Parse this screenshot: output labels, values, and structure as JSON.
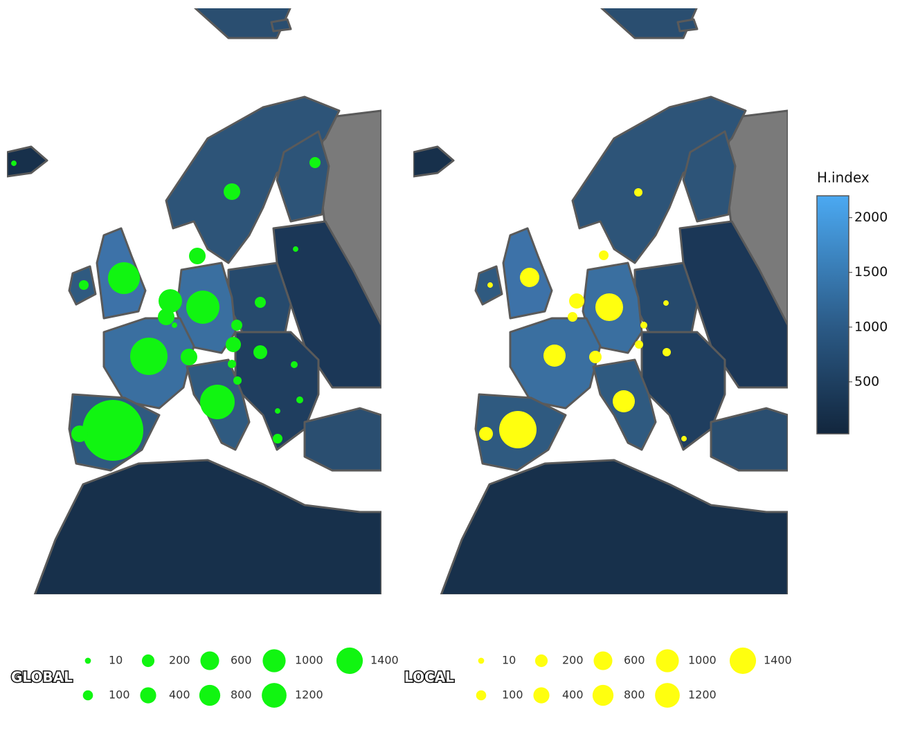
{
  "panels": [
    {
      "title": "GLOBAL",
      "color": "#11f511",
      "bubbles": [
        5,
        135,
        438,
        438,
        5,
        87,
        2163,
        1060,
        438,
        5,
        2385,
        135,
        135,
        3115,
        438,
        346,
        265,
        49,
        49,
        22,
        2618,
        22,
        5,
        87,
        9092,
        438
      ]
    },
    {
      "title": "LOCAL",
      "color": "#ffff0f",
      "bubbles": [
        654,
        5,
        49,
        87,
        346,
        87,
        1563,
        5,
        22,
        49,
        49,
        914,
        195,
        914,
        3115,
        265,
        5
      ]
    }
  ],
  "legend": {
    "sizes": [
      10,
      100,
      200,
      400,
      600,
      800,
      1000,
      1200,
      1400
    ]
  },
  "colorbar": {
    "title": "H.index",
    "range": [
      25,
      2200
    ],
    "ticks": [
      500,
      1000,
      1500,
      2000
    ]
  }
}
